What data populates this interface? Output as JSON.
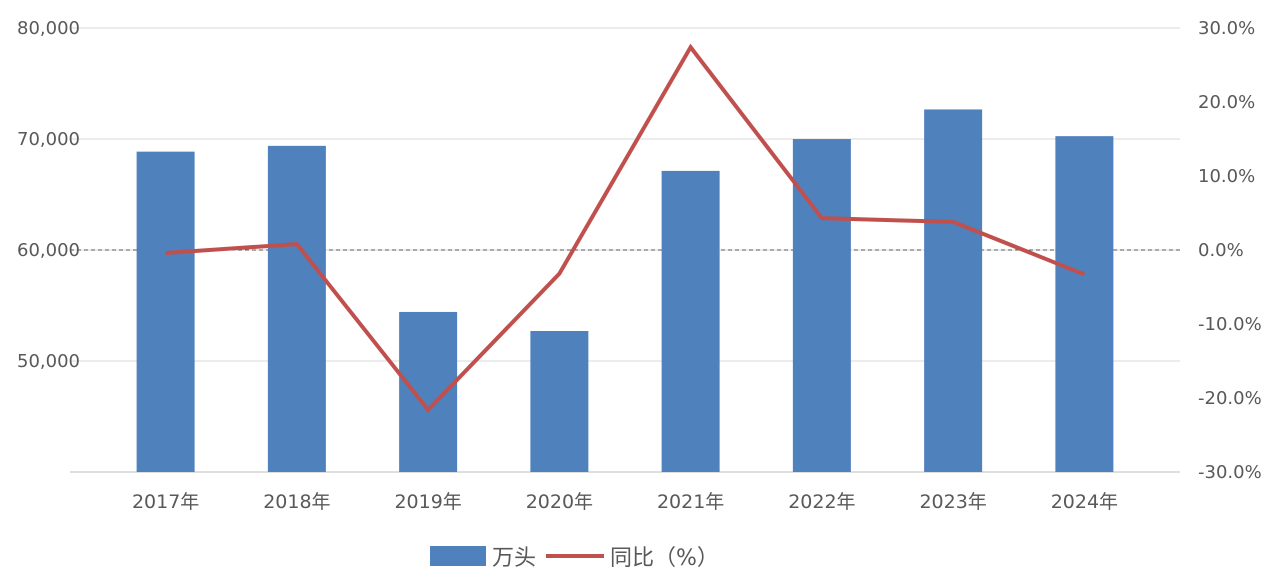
{
  "chart_data": {
    "type": "bar+line",
    "categories": [
      "2017年",
      "2018年",
      "2019年",
      "2020年",
      "2021年",
      "2022年",
      "2023年",
      "2024年"
    ],
    "series": [
      {
        "name": "万头",
        "type": "bar",
        "axis": "left",
        "values": [
          68861,
          69382,
          54419,
          52704,
          67128,
          69995,
          72662,
          70256
        ]
      },
      {
        "name": "同比（%）",
        "type": "line",
        "axis": "right",
        "values": [
          -0.4,
          0.8,
          -21.6,
          -3.2,
          27.4,
          4.3,
          3.8,
          -3.3
        ]
      }
    ],
    "y_left": {
      "ticks": [
        "80,000",
        "70,000",
        "60,000",
        "50,000"
      ],
      "max": 80000,
      "min": 40000
    },
    "y_right": {
      "ticks": [
        "30.0%",
        "20.0%",
        "10.0%",
        "0.0%",
        "-10.0%",
        "-20.0%",
        "-30.0%"
      ],
      "min": -30,
      "max": 30
    },
    "grid": true,
    "legend_position": "bottom",
    "colors": {
      "bar": "#4f81bd",
      "line": "#c0504d"
    }
  }
}
